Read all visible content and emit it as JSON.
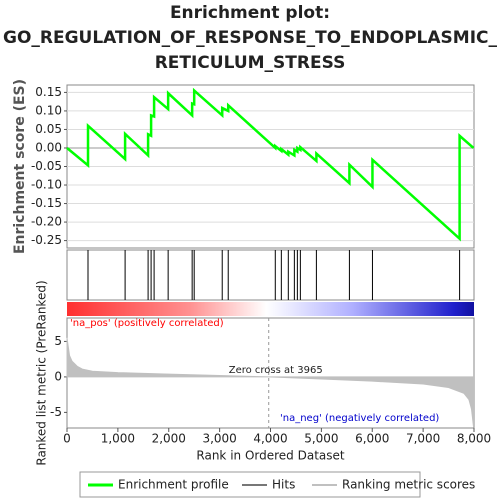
{
  "title": [
    "Enrichment plot:",
    "GO_REGULATION_OF_RESPONSE_TO_ENDOPLASMIC_",
    "RETICULUM_STRESS"
  ],
  "chart_data": [
    {
      "type": "line",
      "y_label": "Enrichment score (ES)",
      "series": [
        {
          "name": "Enrichment profile",
          "color": "#00ff00",
          "x": [
            0,
            413,
            413,
            1142,
            1142,
            1594,
            1594,
            1653,
            1653,
            1712,
            1712,
            1988,
            1988,
            2460,
            2460,
            2500,
            2500,
            3051,
            3051,
            3169,
            3169,
            4094,
            4094,
            4213,
            4213,
            4350,
            4350,
            4469,
            4469,
            4528,
            4528,
            4587,
            4587,
            4902,
            4902,
            5551,
            5551,
            6004,
            6004,
            7717,
            7717,
            7990
          ],
          "values": [
            0,
            -0.047,
            0.06,
            -0.03,
            0.038,
            -0.02,
            0.037,
            0.033,
            0.088,
            0.085,
            0.137,
            0.105,
            0.148,
            0.088,
            0.12,
            0.118,
            0.155,
            0.088,
            0.108,
            0.1,
            0.115,
            0.0,
            0.005,
            -0.008,
            -0.003,
            -0.018,
            -0.01,
            -0.02,
            -0.005,
            -0.01,
            0.0,
            -0.005,
            0.002,
            -0.035,
            -0.015,
            -0.095,
            -0.045,
            -0.105,
            -0.032,
            -0.245,
            0.033,
            0.0
          ]
        }
      ],
      "xlim": [
        0,
        8000
      ],
      "ylim": [
        -0.27,
        0.17
      ],
      "yticks": [
        0.15,
        {
          "value": 0.1,
          "label": "0.10"
        },
        0.05,
        {
          "value": 0,
          "label": "0.00"
        },
        -0.05,
        {
          "value": -0.1,
          "label": "-0.10"
        },
        -0.15,
        {
          "value": -0.2,
          "label": "-0.20"
        },
        -0.25
      ],
      "grid": true
    },
    {
      "type": "rug",
      "series": [
        {
          "name": "Hits",
          "color": "#000000",
          "x": [
            413,
            1142,
            1594,
            1653,
            1712,
            1988,
            2460,
            2500,
            3051,
            3169,
            4094,
            4213,
            4350,
            4469,
            4528,
            4587,
            4902,
            5551,
            6004,
            7717
          ]
        }
      ],
      "xlim": [
        0,
        8000
      ]
    },
    {
      "type": "area",
      "y_label": "Ranked list metric (PreRanked)",
      "x_label": "Rank in Ordered Dataset",
      "series": [
        {
          "name": "Ranking metric scores",
          "color": "#c0c0c0",
          "x": [
            0,
            50,
            100,
            200,
            300,
            500,
            1000,
            2000,
            3000,
            3965,
            5000,
            6000,
            7000,
            7500,
            7800,
            7900,
            7950,
            7990
          ],
          "values": [
            5.5,
            3.0,
            2.2,
            1.5,
            1.1,
            0.8,
            0.6,
            0.4,
            0.2,
            0,
            -0.3,
            -0.6,
            -1.0,
            -1.5,
            -2.3,
            -3.2,
            -4.5,
            -7
          ]
        }
      ],
      "xlim": [
        0,
        8000
      ],
      "ylim": [
        -7.2,
        8.3
      ],
      "yticks": [
        -5,
        0,
        5
      ],
      "xticks": [
        0,
        {
          "value": 1000,
          "label": "1,000"
        },
        {
          "value": 2000,
          "label": "2,000"
        },
        {
          "value": 3000,
          "label": "3,000"
        },
        {
          "value": 4000,
          "label": "4,000"
        },
        {
          "value": 5000,
          "label": "5,000"
        },
        {
          "value": 6000,
          "label": "6,000"
        },
        {
          "value": 7000,
          "label": "7,000"
        },
        {
          "value": 8000,
          "label": "8,000"
        }
      ],
      "zero_cross": {
        "text": "Zero cross at 3965",
        "x": 3965
      },
      "annotations": [
        {
          "text": "'na_pos' (positively correlated)",
          "color": "#ff0000"
        },
        {
          "text": "'na_neg' (negatively correlated)",
          "color": "#0000cc"
        }
      ]
    }
  ]
}
